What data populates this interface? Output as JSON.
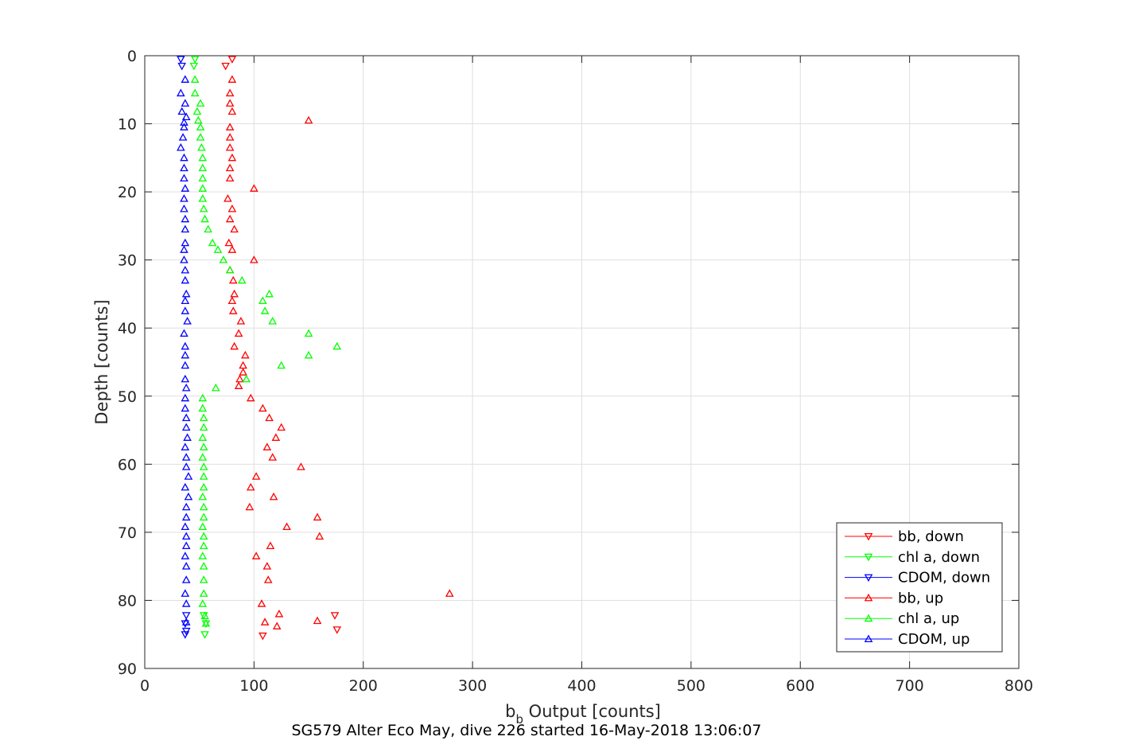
{
  "chart_data": {
    "type": "scatter",
    "xlabel": "b",
    "xlabel_subscript": "b",
    "xlabel_suffix": " Output [counts]",
    "ylabel": "Depth [counts]",
    "caption": "SG579 Alter Eco May, dive 226 started 16-May-2018 13:06:07",
    "xlim": [
      0,
      800
    ],
    "ylim": [
      0,
      90
    ],
    "y_reversed": true,
    "grid": true,
    "legend_position": "bottom-right",
    "xticks": [
      "0",
      "100",
      "200",
      "300",
      "400",
      "500",
      "600",
      "700",
      "800"
    ],
    "yticks": [
      "0",
      "10",
      "20",
      "30",
      "40",
      "50",
      "60",
      "70",
      "80",
      "90"
    ],
    "series": [
      {
        "name": "bb, down",
        "color": "#ff0000",
        "marker": "triangle-down",
        "points": [
          [
            80,
            0.5
          ],
          [
            74,
            1.5
          ],
          [
            174,
            82.2
          ],
          [
            108,
            85.2
          ],
          [
            176,
            84.3
          ]
        ]
      },
      {
        "name": "chl a, down",
        "color": "#00ff00",
        "marker": "triangle-down",
        "points": [
          [
            46,
            0.5
          ],
          [
            45,
            1.5
          ],
          [
            54,
            82.2
          ],
          [
            56,
            83.4
          ],
          [
            55,
            85
          ]
        ]
      },
      {
        "name": "CDOM, down",
        "color": "#0000ff",
        "marker": "triangle-down",
        "points": [
          [
            33,
            0.5
          ],
          [
            34,
            1.5
          ],
          [
            38,
            82.2
          ],
          [
            37,
            83.4
          ],
          [
            38,
            84.5
          ],
          [
            37,
            85
          ]
        ]
      },
      {
        "name": "bb, up",
        "color": "#ff0000",
        "marker": "triangle-up",
        "points": [
          [
            80,
            3.5
          ],
          [
            78,
            5.5
          ],
          [
            78,
            7
          ],
          [
            80,
            8.2
          ],
          [
            150,
            9.5
          ],
          [
            78,
            10.5
          ],
          [
            78,
            12
          ],
          [
            78,
            13.5
          ],
          [
            80,
            15
          ],
          [
            78,
            16.5
          ],
          [
            78,
            18
          ],
          [
            100,
            19.5
          ],
          [
            76,
            21
          ],
          [
            80,
            22.5
          ],
          [
            78,
            24
          ],
          [
            82,
            25.5
          ],
          [
            77,
            27.5
          ],
          [
            80,
            28.5
          ],
          [
            100,
            30
          ],
          [
            78,
            31.5
          ],
          [
            81,
            33
          ],
          [
            82,
            35
          ],
          [
            80,
            36
          ],
          [
            81,
            37.5
          ],
          [
            88,
            39
          ],
          [
            86,
            40.8
          ],
          [
            82,
            42.7
          ],
          [
            92,
            44
          ],
          [
            90,
            45.5
          ],
          [
            90,
            46.5
          ],
          [
            87,
            47.5
          ],
          [
            86,
            48.5
          ],
          [
            97,
            50.3
          ],
          [
            108,
            51.8
          ],
          [
            114,
            53.2
          ],
          [
            125,
            54.6
          ],
          [
            120,
            56.1
          ],
          [
            112,
            57.5
          ],
          [
            117,
            59
          ],
          [
            143,
            60.4
          ],
          [
            102,
            61.8
          ],
          [
            97,
            63.4
          ],
          [
            118,
            64.8
          ],
          [
            96,
            66.3
          ],
          [
            158,
            67.8
          ],
          [
            130,
            69.2
          ],
          [
            160,
            70.6
          ],
          [
            115,
            72
          ],
          [
            102,
            73.5
          ],
          [
            112,
            75
          ],
          [
            113,
            77
          ],
          [
            279,
            79
          ],
          [
            107,
            80.5
          ],
          [
            123,
            82
          ],
          [
            110,
            83.2
          ],
          [
            121,
            83.8
          ],
          [
            158,
            83
          ]
        ]
      },
      {
        "name": "chl a, up",
        "color": "#00ff00",
        "marker": "triangle-up",
        "points": [
          [
            46,
            3.5
          ],
          [
            46,
            5.5
          ],
          [
            51,
            7
          ],
          [
            48,
            8.2
          ],
          [
            49,
            9.5
          ],
          [
            51,
            10.5
          ],
          [
            51,
            12
          ],
          [
            52,
            13.5
          ],
          [
            53,
            15
          ],
          [
            53,
            16.5
          ],
          [
            53,
            18
          ],
          [
            53,
            19.5
          ],
          [
            53,
            21
          ],
          [
            54,
            22.5
          ],
          [
            55,
            24
          ],
          [
            58,
            25.5
          ],
          [
            62,
            27.5
          ],
          [
            67,
            28.5
          ],
          [
            72,
            30
          ],
          [
            78,
            31.5
          ],
          [
            89,
            33
          ],
          [
            114,
            35
          ],
          [
            108,
            36
          ],
          [
            110,
            37.5
          ],
          [
            117,
            39
          ],
          [
            150,
            40.8
          ],
          [
            176,
            42.7
          ],
          [
            150,
            44
          ],
          [
            125,
            45.5
          ],
          [
            93,
            47.5
          ],
          [
            65,
            48.8
          ],
          [
            53,
            50.3
          ],
          [
            53,
            51.8
          ],
          [
            54,
            53.2
          ],
          [
            54,
            54.6
          ],
          [
            53,
            56.1
          ],
          [
            54,
            57.5
          ],
          [
            53,
            59
          ],
          [
            54,
            60.4
          ],
          [
            54,
            61.8
          ],
          [
            54,
            63.4
          ],
          [
            53,
            64.8
          ],
          [
            54,
            66.3
          ],
          [
            54,
            67.8
          ],
          [
            53,
            69.2
          ],
          [
            54,
            70.6
          ],
          [
            54,
            72
          ],
          [
            53,
            73.5
          ],
          [
            54,
            75
          ],
          [
            54,
            77
          ],
          [
            54,
            79
          ],
          [
            53,
            80.5
          ],
          [
            55,
            82.3
          ],
          [
            56,
            83.4
          ]
        ]
      },
      {
        "name": "CDOM, up",
        "color": "#0000ff",
        "marker": "triangle-up",
        "points": [
          [
            37,
            3.5
          ],
          [
            33,
            5.5
          ],
          [
            37,
            7
          ],
          [
            34,
            8.2
          ],
          [
            38,
            9
          ],
          [
            36,
            9.8
          ],
          [
            36,
            10.5
          ],
          [
            35,
            12
          ],
          [
            33,
            13.5
          ],
          [
            36,
            15
          ],
          [
            36,
            16.5
          ],
          [
            36,
            18
          ],
          [
            37,
            19.5
          ],
          [
            36,
            21
          ],
          [
            36,
            22.5
          ],
          [
            37,
            24
          ],
          [
            37,
            25.5
          ],
          [
            37,
            27.5
          ],
          [
            36,
            28.5
          ],
          [
            36,
            30
          ],
          [
            37,
            31.5
          ],
          [
            37,
            33
          ],
          [
            38,
            35
          ],
          [
            37,
            36
          ],
          [
            37,
            37.5
          ],
          [
            39,
            39
          ],
          [
            36,
            40.8
          ],
          [
            37,
            42.7
          ],
          [
            37,
            44
          ],
          [
            37,
            45.5
          ],
          [
            37,
            47.5
          ],
          [
            38,
            48.8
          ],
          [
            37,
            50.3
          ],
          [
            37,
            51.8
          ],
          [
            38,
            53.2
          ],
          [
            38,
            54.6
          ],
          [
            39,
            56.1
          ],
          [
            37,
            57.5
          ],
          [
            38,
            59
          ],
          [
            38,
            60.4
          ],
          [
            40,
            61.8
          ],
          [
            37,
            63.4
          ],
          [
            40,
            64.8
          ],
          [
            38,
            66.3
          ],
          [
            38,
            67.8
          ],
          [
            37,
            69.2
          ],
          [
            38,
            70.6
          ],
          [
            38,
            72
          ],
          [
            37,
            73.5
          ],
          [
            38,
            75
          ],
          [
            38,
            77
          ],
          [
            37,
            79
          ],
          [
            38,
            80.5
          ],
          [
            38,
            83.2
          ]
        ]
      }
    ]
  }
}
